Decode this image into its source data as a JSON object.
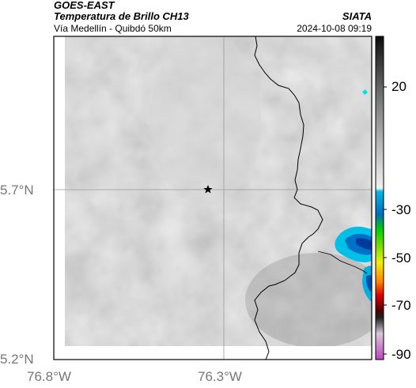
{
  "header": {
    "satellite": "GOES-EAST",
    "product": "Temperatura de Brillo CH13",
    "region": "Vía Medellín - Quibdó 50km",
    "org": "SIATA",
    "timestamp": "2024-10-08 09:19"
  },
  "map": {
    "lat_ticks": [
      "5.7°N",
      "5.2°N"
    ],
    "lon_ticks": [
      "76.8°W",
      "76.3°W"
    ],
    "marker_icon": "star-icon",
    "gridline_color": "#9a9a9a",
    "boundary_color": "#000000"
  },
  "colorbar": {
    "tick_labels": [
      "20",
      "-30",
      "-50",
      "-70",
      "-90"
    ],
    "palette": [
      "#0c0c0c",
      "#3a3a3a",
      "#7a7a7a",
      "#b5b5b5",
      "#e8e8e8",
      "#00b8e6",
      "#00d000",
      "#f0f000",
      "#ff8000",
      "#e00000",
      "#500000",
      "#d8c8d8",
      "#c040c0"
    ]
  }
}
